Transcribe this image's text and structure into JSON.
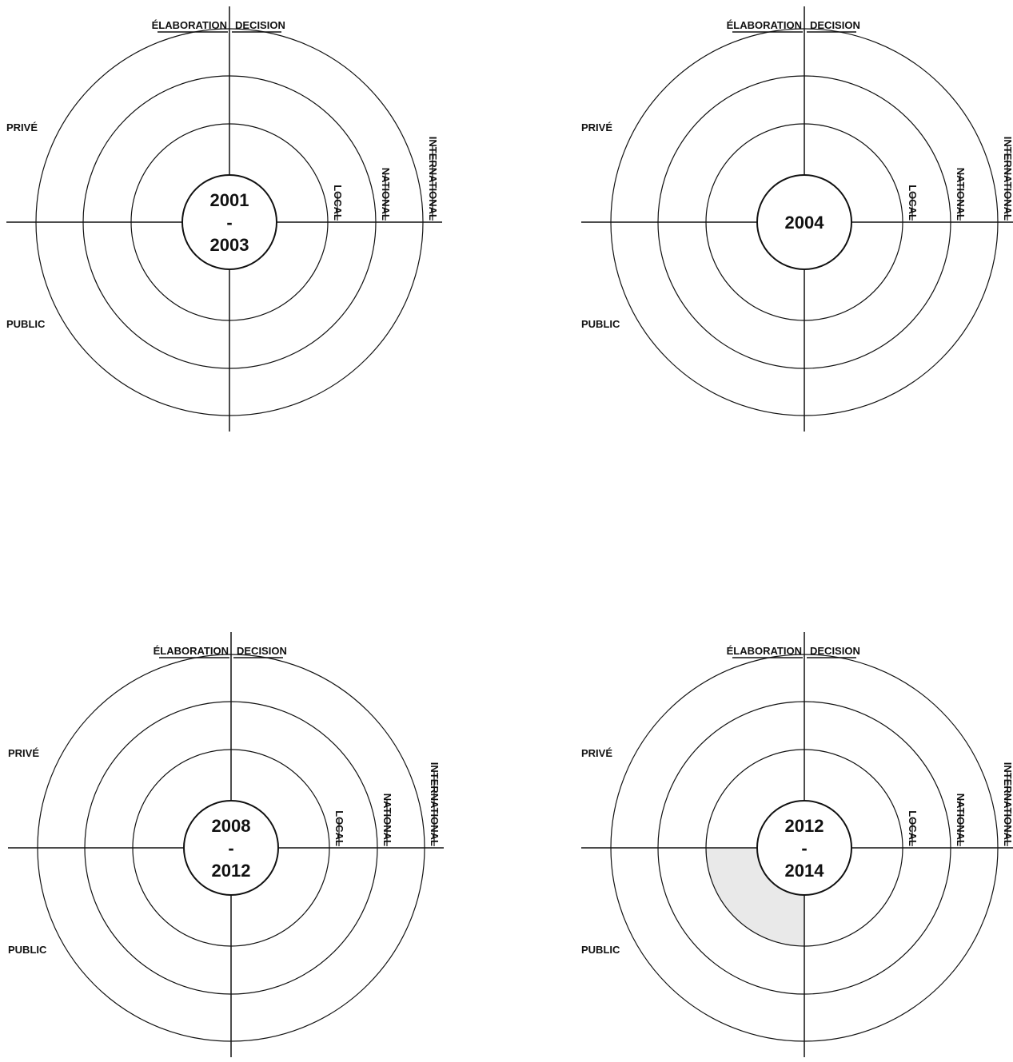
{
  "colors": {
    "line": "#111111",
    "highlight": "#e9e9e9",
    "background": "#ffffff"
  },
  "diagrams": [
    {
      "period_lines": [
        "2001",
        "-",
        "2003"
      ],
      "labels": {
        "elaboration": "ÉLABORATION",
        "decision": "DECISION",
        "prive": "PRIVÉ",
        "public": "PUBLIC",
        "local": "LOCAL",
        "national": "NATIONAL",
        "international": "INTERNATIONAL"
      },
      "highlights": []
    },
    {
      "period_lines": [
        "2004"
      ],
      "labels": {
        "elaboration": "ÉLABORATION",
        "decision": "DECISION",
        "prive": "PRIVÉ",
        "public": "PUBLIC",
        "local": "LOCAL",
        "national": "NATIONAL",
        "international": "INTERNATIONAL"
      },
      "highlights": []
    },
    {
      "period_lines": [
        "2008",
        "-",
        "2012"
      ],
      "labels": {
        "elaboration": "ÉLABORATION",
        "decision": "DECISION",
        "prive": "PRIVÉ",
        "public": "PUBLIC",
        "local": "LOCAL",
        "national": "NATIONAL",
        "international": "INTERNATIONAL"
      },
      "highlights": []
    },
    {
      "period_lines": [
        "2012",
        "-",
        "2014"
      ],
      "labels": {
        "elaboration": "ÉLABORATION",
        "decision": "DECISION",
        "prive": "PRIVÉ",
        "public": "PUBLIC",
        "local": "LOCAL",
        "national": "NATIONAL",
        "international": "INTERNATIONAL"
      },
      "highlights": [
        {
          "quadrant": "bottom-left",
          "ring": "local"
        }
      ]
    }
  ]
}
